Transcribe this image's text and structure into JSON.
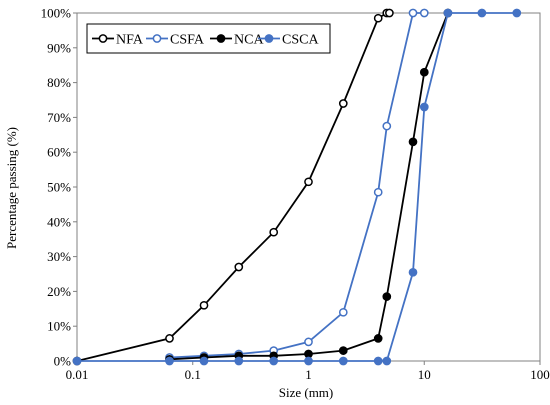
{
  "chart_data": {
    "type": "line",
    "title": "",
    "xlabel": "Size (mm)",
    "ylabel": "Percentage passing (%)",
    "xscale": "log",
    "xlim": [
      0.01,
      100
    ],
    "ylim": [
      0,
      100
    ],
    "xticks": [
      0.01,
      0.1,
      1,
      10,
      100
    ],
    "xtick_labels": [
      "0.01",
      "0.1",
      "1",
      "10",
      "100"
    ],
    "yticks": [
      0,
      10,
      20,
      30,
      40,
      50,
      60,
      70,
      80,
      90,
      100
    ],
    "ytick_labels": [
      "0%",
      "10%",
      "20%",
      "30%",
      "40%",
      "50%",
      "60%",
      "70%",
      "80%",
      "90%",
      "100%"
    ],
    "grid": false,
    "legend_position": "top-left",
    "series": [
      {
        "name": "NFA",
        "color": "#000000",
        "marker": "open-circle",
        "x": [
          0.01,
          0.063,
          0.125,
          0.25,
          0.5,
          1,
          2,
          4,
          4.75,
          5
        ],
        "y": [
          0,
          6.5,
          16,
          27,
          37,
          51.5,
          74,
          98.5,
          100,
          100
        ]
      },
      {
        "name": "CSFA",
        "color": "#4472C4",
        "marker": "open-circle",
        "x": [
          0.063,
          0.125,
          0.25,
          0.5,
          1,
          2,
          4,
          4.75,
          8,
          10
        ],
        "y": [
          1,
          1.5,
          2,
          3,
          5.5,
          14,
          48.5,
          67.5,
          100,
          100
        ]
      },
      {
        "name": "NCA",
        "color": "#000000",
        "marker": "filled-circle",
        "x": [
          0.063,
          0.125,
          0.25,
          0.5,
          1,
          2,
          4,
          4.75,
          8,
          10,
          16
        ],
        "y": [
          0.5,
          1,
          1.5,
          1.5,
          2,
          3,
          6.5,
          18.5,
          63,
          83,
          100
        ]
      },
      {
        "name": "CSCA",
        "color": "#4472C4",
        "marker": "filled-circle",
        "x": [
          0.01,
          0.063,
          0.125,
          0.25,
          0.5,
          1,
          2,
          4,
          4.75,
          8,
          10,
          16,
          31.5,
          63
        ],
        "y": [
          0,
          0,
          0,
          0,
          0,
          0,
          0,
          0,
          0,
          25.5,
          73,
          100,
          100,
          100
        ]
      }
    ]
  }
}
